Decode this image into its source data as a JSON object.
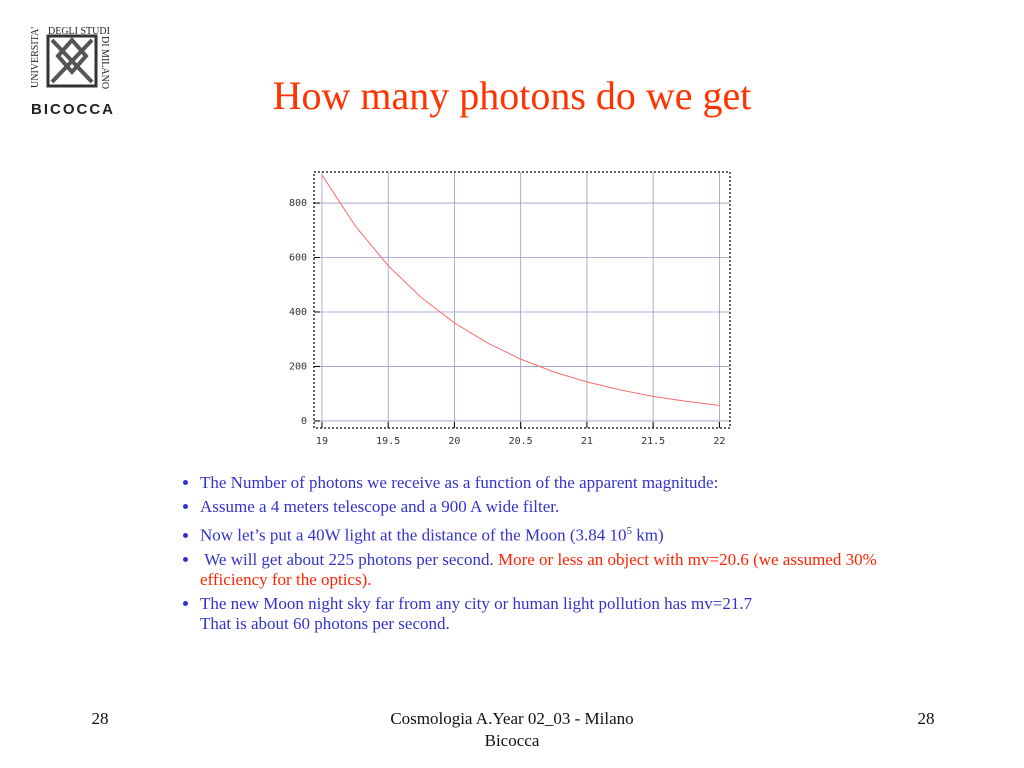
{
  "logo": {
    "line1": "UNIVERSITA'",
    "line2": "DEGLI STUDI",
    "line3": "DI MILANO",
    "name": "BICOCCA"
  },
  "title": "How many photons do we get",
  "chart_data": {
    "type": "line",
    "x": [
      19,
      19.25,
      19.5,
      19.75,
      20,
      20.25,
      20.5,
      20.75,
      21,
      21.25,
      21.5,
      21.75,
      22
    ],
    "values": [
      903,
      717,
      570,
      453,
      360,
      286,
      227,
      180,
      143,
      114,
      90,
      72,
      57
    ],
    "color": "#ff5a5a",
    "xlim": [
      18.94,
      22.08
    ],
    "ylim": [
      -26,
      914
    ],
    "xticks": [
      19,
      19.5,
      20,
      20.5,
      21,
      21.5,
      22
    ],
    "yticks": [
      0,
      200,
      400,
      600,
      800
    ],
    "grid": true
  },
  "bullets": [
    {
      "text": "The Number of photons we receive as a function of the apparent magnitude:"
    },
    {
      "text": "Assume a 4 meters telescope and a 900 A wide filter."
    },
    {
      "text": "Now let’s put a 40W light at the distance of the Moon (3.84 10",
      "sup": "5",
      "after": " km)"
    },
    {
      "text": "We will get about 225 photons per second.",
      "note": "More or less an object with mv=20.6 (we assumed 30% efficiency for the optics)."
    },
    {
      "text": "The new Moon night sky far from any city or human light pollution has  mv=21.7",
      "text2": "That is about 60 photons per second."
    }
  ],
  "footer": {
    "left": "28",
    "center": "Cosmologia A.Year 02_03 - Milano Bicocca",
    "right": "28"
  }
}
